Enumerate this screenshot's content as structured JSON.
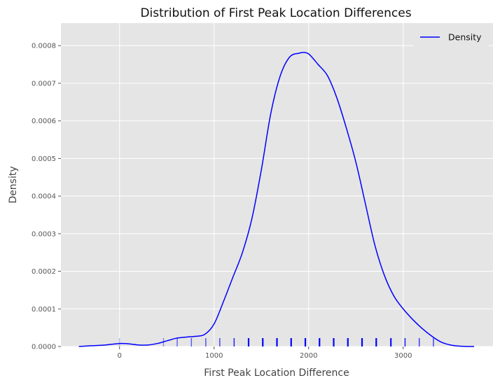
{
  "chart_data": {
    "type": "line",
    "title": "Distribution of First Peak Location Differences",
    "xlabel": "First Peak Location Difference",
    "ylabel": "Density",
    "xlim": [
      -620,
      3950
    ],
    "ylim": [
      0,
      0.00086
    ],
    "x_ticks": [
      0,
      1000,
      2000,
      3000
    ],
    "y_ticks": [
      0,
      0.0001,
      0.0002,
      0.0003,
      0.0004,
      0.0005,
      0.0006,
      0.0007,
      0.0008
    ],
    "x_tick_labels": [
      "0",
      "1000",
      "2000",
      "3000"
    ],
    "y_tick_labels": [
      "0.0000",
      "0.0001",
      "0.0002",
      "0.0003",
      "0.0004",
      "0.0005",
      "0.0006",
      "0.0007",
      "0.0008"
    ],
    "grid": true,
    "legend_position": "top-right",
    "series": [
      {
        "name": "Density",
        "color": "#0000ff",
        "x": [
          -430,
          -300,
          -150,
          0,
          100,
          200,
          300,
          400,
          500,
          600,
          700,
          800,
          900,
          1000,
          1100,
          1200,
          1300,
          1400,
          1500,
          1600,
          1700,
          1800,
          1900,
          1950,
          2000,
          2050,
          2100,
          2200,
          2300,
          2400,
          2500,
          2600,
          2700,
          2800,
          2900,
          3000,
          3100,
          3200,
          3300,
          3400,
          3500,
          3600,
          3700,
          3750
        ],
        "y": [
          0.0,
          2e-06,
          4e-06,
          8e-06,
          7e-06,
          4e-06,
          4e-06,
          8e-06,
          1.5e-05,
          2.2e-05,
          2.5e-05,
          2.7e-05,
          3.2e-05,
          6e-05,
          0.00012,
          0.000185,
          0.00025,
          0.00034,
          0.00047,
          0.00062,
          0.00072,
          0.00077,
          0.00078,
          0.000782,
          0.000778,
          0.000765,
          0.00075,
          0.00072,
          0.00066,
          0.00058,
          0.00049,
          0.00038,
          0.00027,
          0.00019,
          0.000135,
          0.0001,
          7.2e-05,
          4.8e-05,
          2.8e-05,
          1.2e-05,
          4e-06,
          1e-06,
          0.0,
          0.0
        ]
      }
    ],
    "rug": {
      "color": "#0000ff",
      "x": [
        0,
        465,
        610,
        760,
        912,
        1060,
        1212,
        1365,
        1515,
        1665,
        1815,
        1965,
        2115,
        2265,
        2415,
        2565,
        2715,
        2870,
        3020,
        3170,
        3320
      ],
      "opacity": [
        0.25,
        0.4,
        0.55,
        0.6,
        0.65,
        0.7,
        0.85,
        0.95,
        1,
        1,
        1,
        1,
        1,
        1,
        1,
        1,
        1,
        0.95,
        0.9,
        0.75,
        0.7
      ]
    }
  }
}
